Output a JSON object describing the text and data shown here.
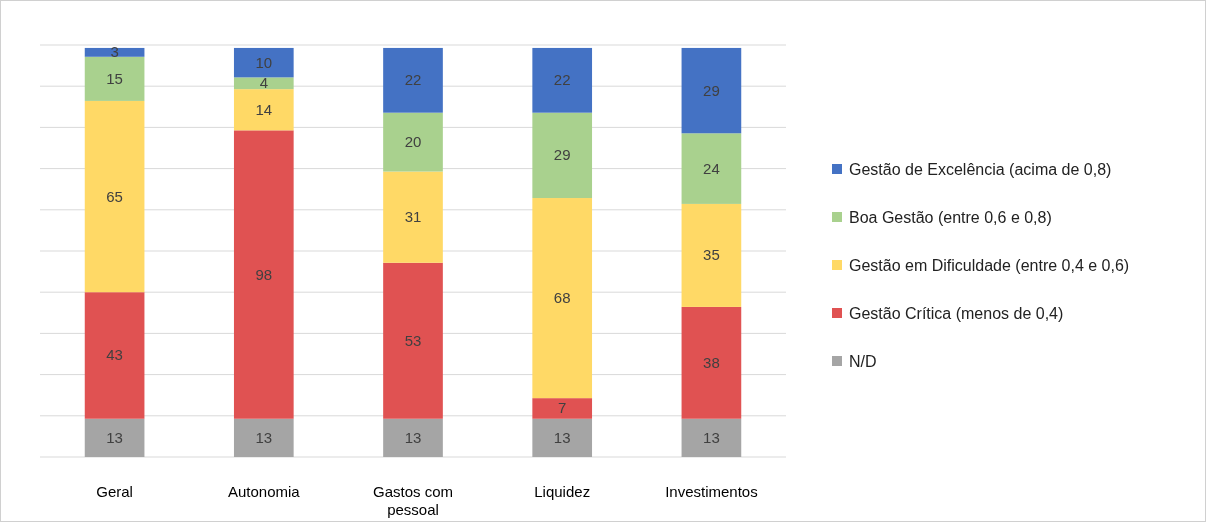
{
  "chart_data": {
    "type": "bar",
    "stacked": true,
    "categories": [
      "Geral",
      "Autonomia",
      "Gastos com pessoal",
      "Liquidez",
      "Investimentos"
    ],
    "series": [
      {
        "name": "N/D",
        "color": "#a5a5a5",
        "values": [
          13,
          13,
          13,
          13,
          13
        ]
      },
      {
        "name": "Gestão Crítica (menos de 0,4)",
        "color": "#e05252",
        "values": [
          43,
          98,
          53,
          7,
          38
        ]
      },
      {
        "name": "Gestão em Dificuldade (entre 0,4 e 0,6)",
        "color": "#ffd966",
        "values": [
          65,
          14,
          31,
          68,
          35
        ]
      },
      {
        "name": "Boa Gestão (entre 0,6 e 0,8)",
        "color": "#a9d18e",
        "values": [
          15,
          4,
          20,
          29,
          24
        ]
      },
      {
        "name": "Gestão de Excelência (acima de 0,8)",
        "color": "#4472c4",
        "values": [
          3,
          10,
          22,
          22,
          29
        ]
      }
    ],
    "ylim": [
      0,
      140
    ],
    "yticks": [
      {
        "value": 0,
        "label": null
      },
      {
        "value": 14,
        "label": null
      },
      {
        "value": 28,
        "label": null
      },
      {
        "value": 42,
        "label": null
      },
      {
        "value": 56,
        "label": null
      },
      {
        "value": 70,
        "label": null
      },
      {
        "value": 84,
        "label": null
      },
      {
        "value": 98,
        "label": null
      },
      {
        "value": 112,
        "label": null
      },
      {
        "value": 126,
        "label": null
      },
      {
        "value": 140,
        "label": null
      }
    ],
    "grid": "y",
    "tick_labels": "x",
    "data_labels": true,
    "legend": "right"
  }
}
